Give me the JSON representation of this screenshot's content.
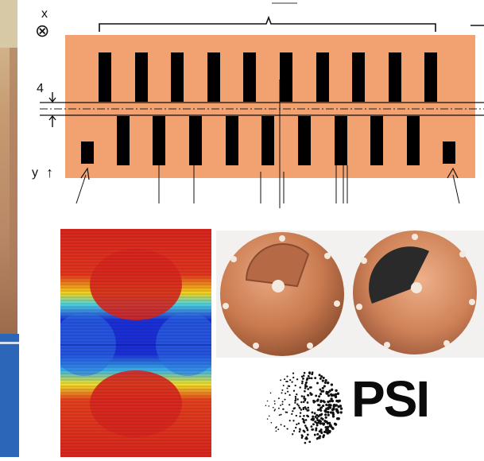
{
  "colors": {
    "copper_base": "#f2a170",
    "tooth": "#000000",
    "band": "#2b66b8",
    "field_hot": "#d8261e",
    "field_cold": "#1b2fd6",
    "copper_plate": "#c97a4f",
    "graphite": "#2a2a2a"
  },
  "schematic": {
    "axis_x_label": "x",
    "axis_x_symbol": "⊗",
    "axis_y_label": "y",
    "axis_y_symbol": "↑",
    "gap_value": "4"
  },
  "logo": {
    "text": "PSI"
  },
  "icons": {
    "cross_circle": "circle-cross-icon",
    "up_arrow": "arrow-up-icon"
  }
}
